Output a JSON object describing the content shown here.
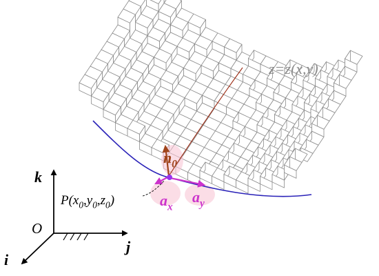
{
  "surface_label": "z=z(x,y)",
  "normal_vector": [
    "n",
    "0"
  ],
  "tangent_x": [
    "a",
    "x"
  ],
  "tangent_y": [
    "a",
    "y"
  ],
  "point_label": [
    "P(x",
    "0",
    ",y",
    "0",
    ",z",
    "0",
    ")"
  ],
  "axes": {
    "origin": "O",
    "i": "i",
    "j": "j",
    "k": "k"
  }
}
